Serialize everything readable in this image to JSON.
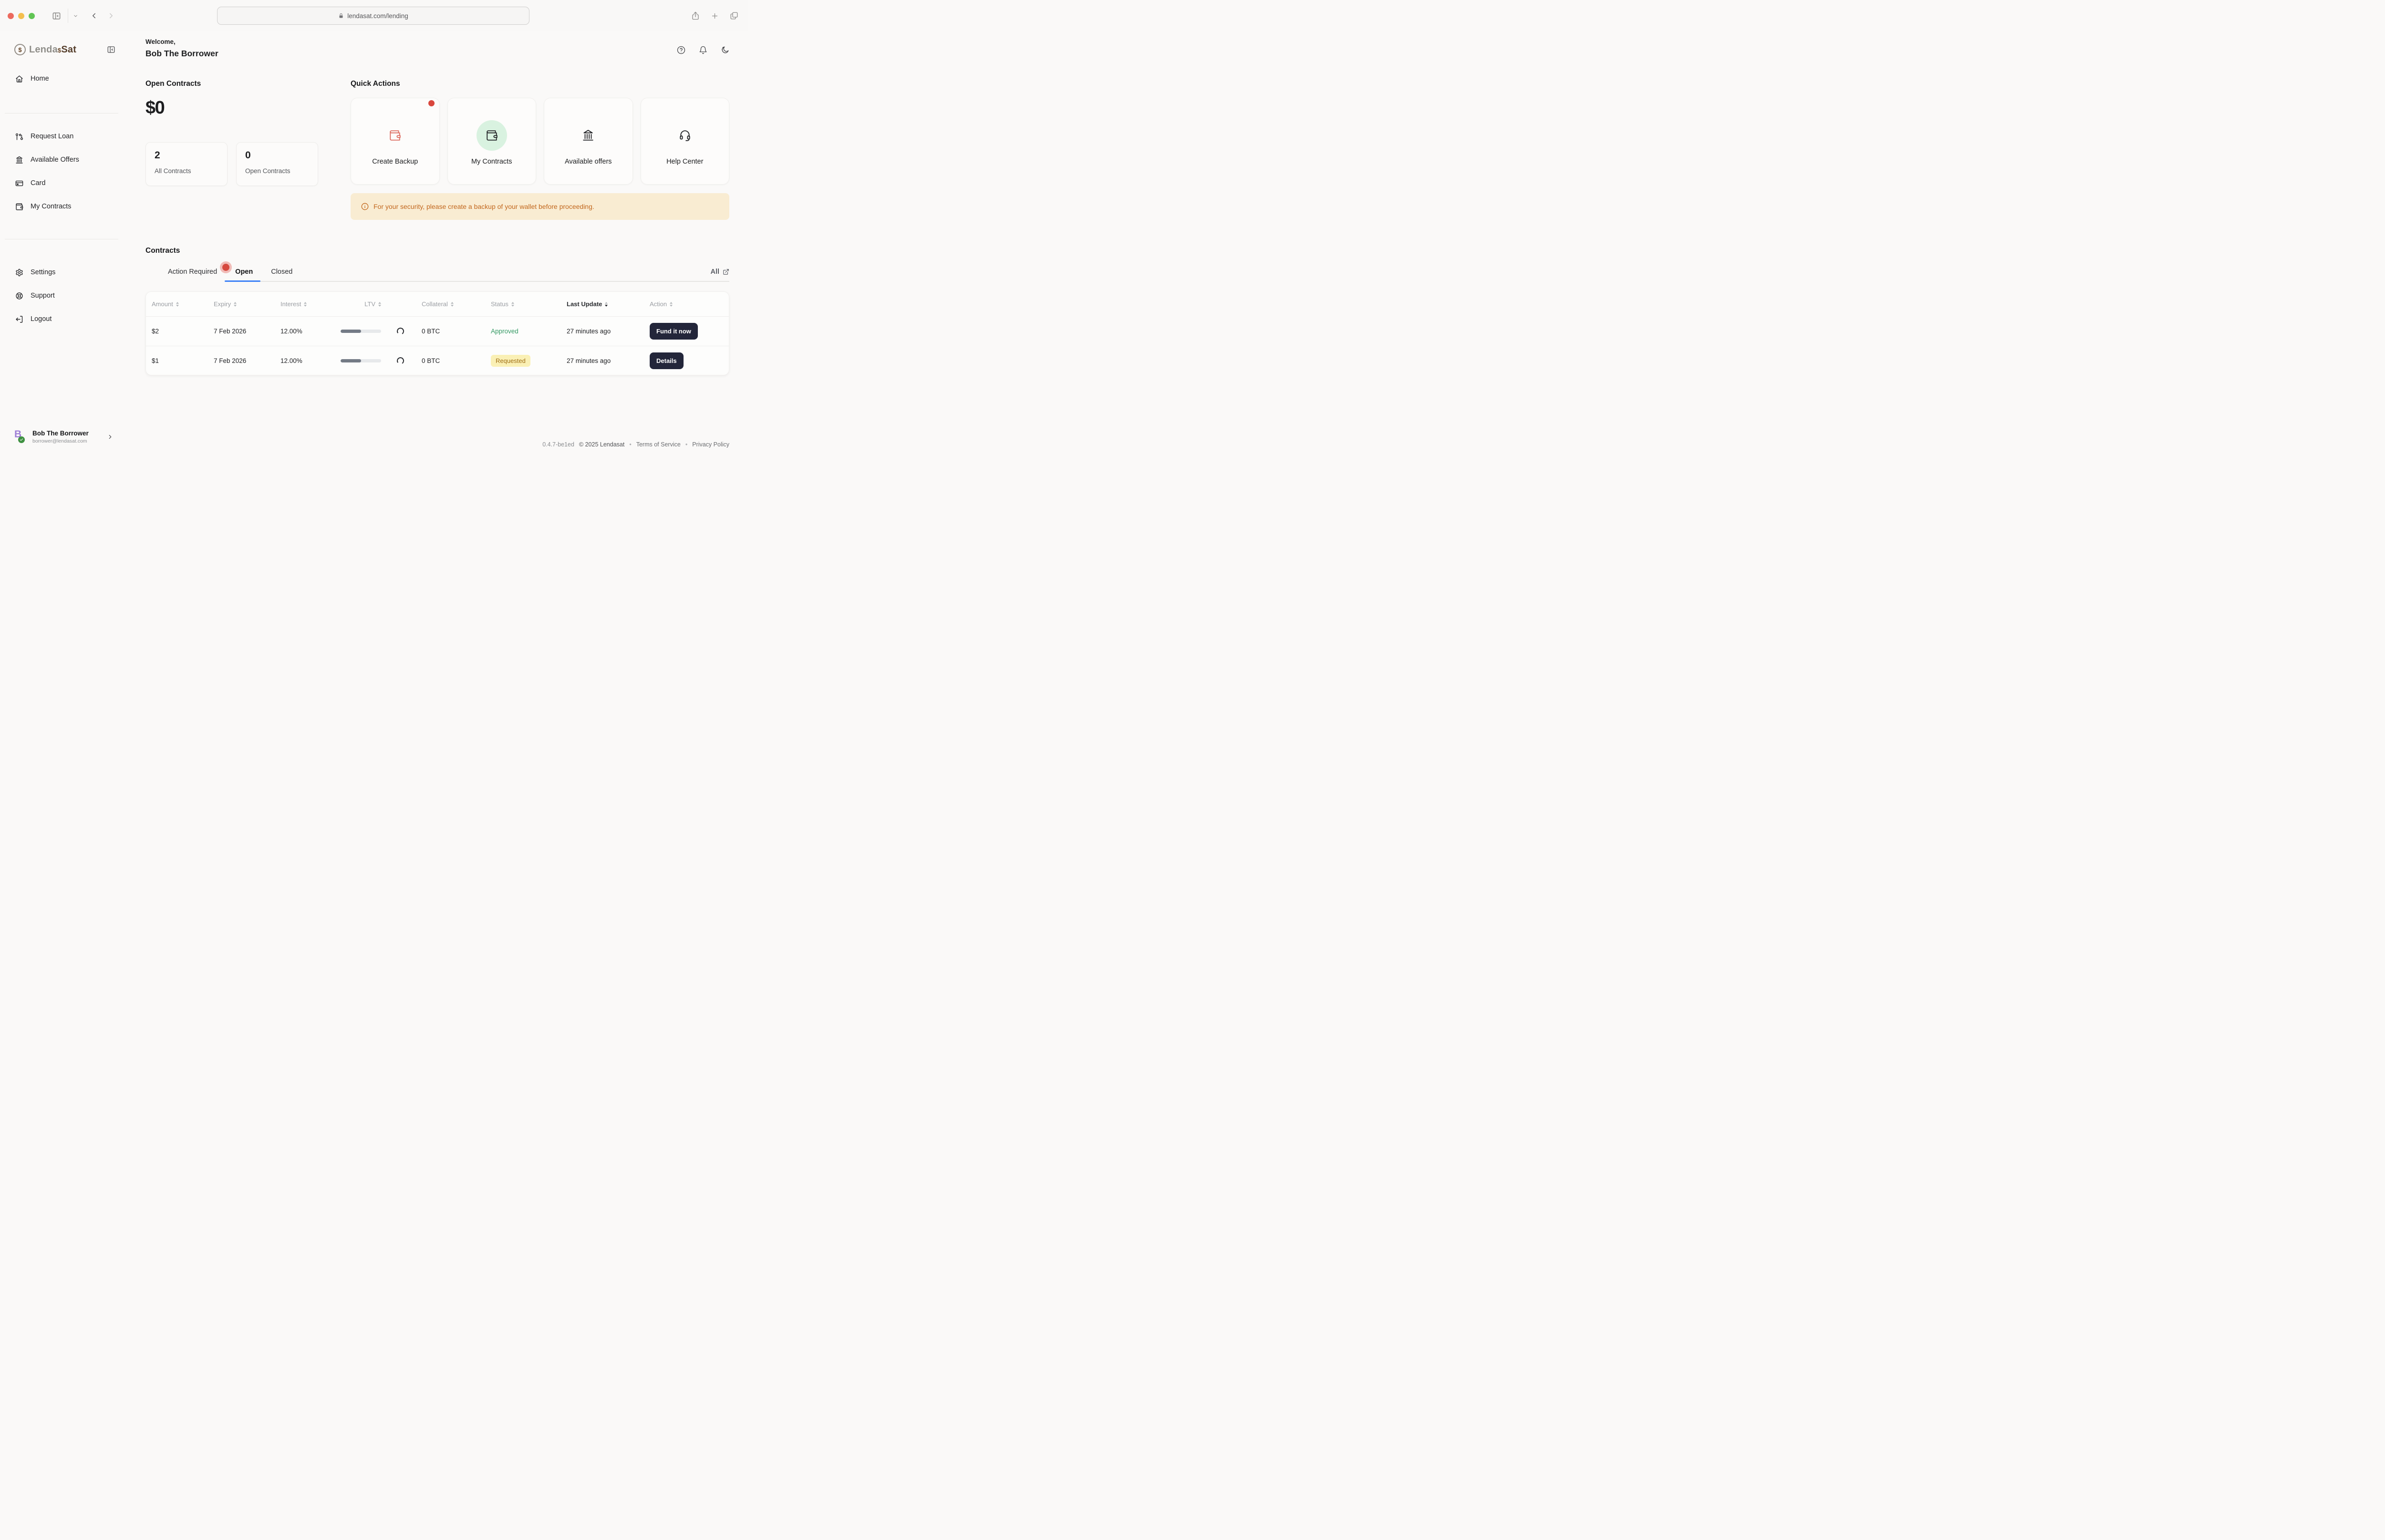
{
  "browser": {
    "url": "lendasat.com/lending",
    "traffic_lights": [
      "#ec6a5e",
      "#f4bf4f",
      "#61c554"
    ]
  },
  "sidebar": {
    "logo": {
      "part1": "Lenda",
      "symbol": "$",
      "part2": "Sat"
    },
    "nav_home": {
      "label": "Home",
      "icon": "home-icon"
    },
    "nav_items": [
      {
        "label": "Request Loan",
        "icon": "pull-request-icon"
      },
      {
        "label": "Available Offers",
        "icon": "bank-icon"
      },
      {
        "label": "Card",
        "icon": "credit-card-icon"
      },
      {
        "label": "My Contracts",
        "icon": "wallet-icon"
      }
    ],
    "nav_footer": [
      {
        "label": "Settings",
        "icon": "gear-icon"
      },
      {
        "label": "Support",
        "icon": "life-buoy-icon"
      },
      {
        "label": "Logout",
        "icon": "logout-icon"
      }
    ],
    "user": {
      "initial": "B",
      "name": "Bob The Borrower",
      "email": "borrower@lendasat.com"
    }
  },
  "header": {
    "greeting": "Welcome,",
    "username": "Bob The Borrower"
  },
  "overview": {
    "title": "Open Contracts",
    "total": "$0",
    "stats": [
      {
        "value": "2",
        "label": "All Contracts"
      },
      {
        "value": "0",
        "label": "Open Contracts"
      }
    ]
  },
  "quick_actions": {
    "title": "Quick Actions",
    "cards": [
      {
        "label": "Create Backup",
        "icon": "wallet-icon",
        "has_alert": true
      },
      {
        "label": "My Contracts",
        "icon": "wallet-icon"
      },
      {
        "label": "Available offers",
        "icon": "bank-icon"
      },
      {
        "label": "Help Center",
        "icon": "headset-icon"
      }
    ],
    "warning": "For your security, please create a backup of your wallet before proceeding."
  },
  "contracts": {
    "title": "Contracts",
    "tabs": [
      {
        "label": "Action Required",
        "has_alert": true
      },
      {
        "label": "Open",
        "active": true
      },
      {
        "label": "Closed"
      }
    ],
    "all_link": "All",
    "table": {
      "columns": [
        "Amount",
        "Expiry",
        "Interest",
        "LTV",
        "Collateral",
        "Status",
        "Last Update",
        "Action"
      ],
      "sorted_column": "Last Update",
      "rows": [
        {
          "amount": "$2",
          "expiry": "7 Feb 2026",
          "interest": "12.00%",
          "ltv_progress_pct": 50,
          "collateral": "0 BTC",
          "status": "Approved",
          "status_style": "green-text",
          "last_update": "27 minutes ago",
          "action": "Fund it now"
        },
        {
          "amount": "$1",
          "expiry": "7 Feb 2026",
          "interest": "12.00%",
          "ltv_progress_pct": 50,
          "collateral": "0 BTC",
          "status": "Requested",
          "status_style": "yellow-badge",
          "last_update": "27 minutes ago",
          "action": "Details"
        }
      ]
    }
  },
  "footer": {
    "version": "0.4.7-be1ed",
    "copyright": "© 2025 Lendasat",
    "separator": "•",
    "links": [
      "Terms of Service",
      "Privacy Policy"
    ]
  },
  "colors": {
    "accent_blue": "#3e82f7",
    "alert_red": "#d9473d",
    "approved_green": "#359a64",
    "badge_yellow_bg": "#faf0b5",
    "badge_yellow_text": "#a06f15",
    "warning_bg": "#f9ecd2",
    "warning_text": "#c2671d",
    "dark_button": "#23263a",
    "green_circle": "#d9f2e0"
  }
}
